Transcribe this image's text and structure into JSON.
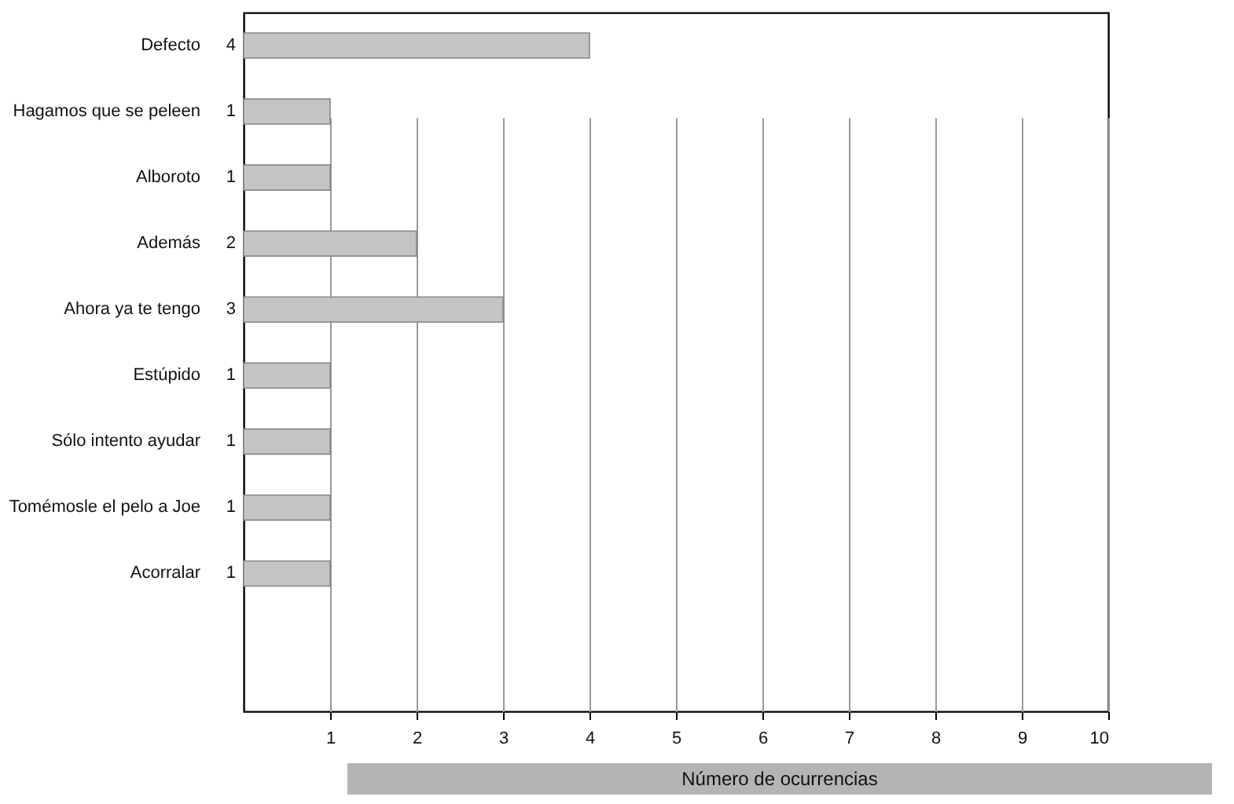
{
  "chart_data": {
    "type": "bar",
    "orientation": "horizontal",
    "xlabel": "Número de ocurrencias",
    "categories": [
      "Defecto",
      "Hagamos que se peleen",
      "Alboroto",
      "Además",
      "Ahora ya te tengo",
      "Estúpido",
      "Sólo intento ayudar",
      "Tomémosle el pelo a Joe",
      "Acorralar"
    ],
    "values": [
      4,
      1,
      1,
      2,
      3,
      1,
      1,
      1,
      1
    ],
    "color": "#c4c4c4",
    "xlim": [
      0,
      10
    ],
    "xticks": [
      1,
      2,
      3,
      4,
      5,
      6,
      7,
      8,
      9,
      10
    ],
    "grid": "x",
    "data_labels": true
  }
}
